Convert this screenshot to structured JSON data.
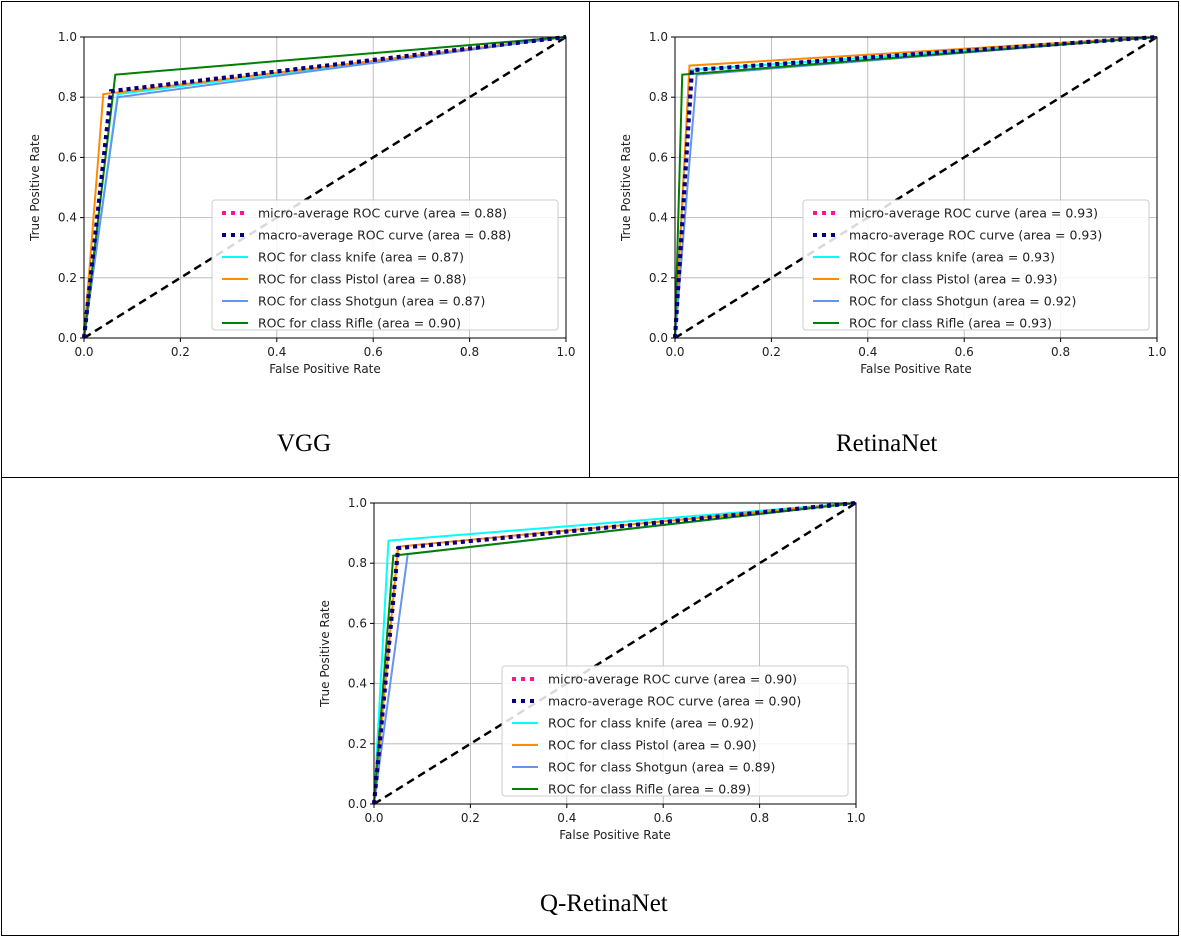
{
  "chart_data": [
    {
      "type": "line",
      "caption": "VGG",
      "xlabel": "False Positive Rate",
      "ylabel": "True Positive Rate",
      "xlim": [
        0,
        1
      ],
      "ylim": [
        0,
        1
      ],
      "xticks": [
        "0.0",
        "0.2",
        "0.4",
        "0.6",
        "0.8",
        "1.0"
      ],
      "yticks": [
        "0.0",
        "0.2",
        "0.4",
        "0.6",
        "0.8",
        "1.0"
      ],
      "grid": true,
      "legend_position": "lower-right",
      "series": [
        {
          "name": "micro-average ROC curve (area = 0.88)",
          "color": "#ff1493",
          "style": "dotted",
          "x": [
            0,
            0.056,
            1
          ],
          "y": [
            0,
            0.82,
            1
          ]
        },
        {
          "name": "macro-average ROC curve (area = 0.88)",
          "color": "#000080",
          "style": "dotted",
          "x": [
            0,
            0.056,
            1
          ],
          "y": [
            0,
            0.82,
            1
          ]
        },
        {
          "name": "ROC for class knife (area = 0.87)",
          "color": "#00ffff",
          "style": "solid",
          "x": [
            0,
            0.07,
            1
          ],
          "y": [
            0,
            0.81,
            1
          ]
        },
        {
          "name": "ROC for class Pistol (area = 0.88)",
          "color": "#ff8c00",
          "style": "solid",
          "x": [
            0,
            0.04,
            1
          ],
          "y": [
            0,
            0.81,
            1
          ]
        },
        {
          "name": "ROC for class Shotgun (area = 0.87)",
          "color": "#6495ed",
          "style": "solid",
          "x": [
            0,
            0.07,
            1
          ],
          "y": [
            0,
            0.8,
            1
          ]
        },
        {
          "name": "ROC for class Rifle (area = 0.90)",
          "color": "#008000",
          "style": "solid",
          "x": [
            0,
            0.065,
            1
          ],
          "y": [
            0,
            0.875,
            1
          ]
        }
      ],
      "reference_line": {
        "x": [
          0,
          1
        ],
        "y": [
          0,
          1
        ],
        "color": "#000000",
        "style": "dashed"
      }
    },
    {
      "type": "line",
      "caption": "RetinaNet",
      "xlabel": "False Positive Rate",
      "ylabel": "True Positive Rate",
      "xlim": [
        0,
        1
      ],
      "ylim": [
        0,
        1
      ],
      "xticks": [
        "0.0",
        "0.2",
        "0.4",
        "0.6",
        "0.8",
        "1.0"
      ],
      "yticks": [
        "0.0",
        "0.2",
        "0.4",
        "0.6",
        "0.8",
        "1.0"
      ],
      "grid": true,
      "legend_position": "lower-right",
      "series": [
        {
          "name": "micro-average ROC curve (area = 0.93)",
          "color": "#ff1493",
          "style": "dotted",
          "x": [
            0,
            0.035,
            1
          ],
          "y": [
            0,
            0.89,
            1
          ]
        },
        {
          "name": "macro-average ROC curve (area = 0.93)",
          "color": "#000080",
          "style": "dotted",
          "x": [
            0,
            0.035,
            1
          ],
          "y": [
            0,
            0.89,
            1
          ]
        },
        {
          "name": "ROC for class knife (area = 0.93)",
          "color": "#00ffff",
          "style": "solid",
          "x": [
            0,
            0.03,
            1
          ],
          "y": [
            0,
            0.89,
            1
          ]
        },
        {
          "name": "ROC for class Pistol (area = 0.93)",
          "color": "#ff8c00",
          "style": "solid",
          "x": [
            0,
            0.03,
            1
          ],
          "y": [
            0,
            0.905,
            1
          ]
        },
        {
          "name": "ROC for class Shotgun (area = 0.92)",
          "color": "#6495ed",
          "style": "solid",
          "x": [
            0,
            0.045,
            1
          ],
          "y": [
            0,
            0.875,
            1
          ]
        },
        {
          "name": "ROC for class Rifle (area = 0.93)",
          "color": "#008000",
          "style": "solid",
          "x": [
            0,
            0.015,
            1
          ],
          "y": [
            0,
            0.875,
            1
          ]
        }
      ],
      "reference_line": {
        "x": [
          0,
          1
        ],
        "y": [
          0,
          1
        ],
        "color": "#000000",
        "style": "dashed"
      }
    },
    {
      "type": "line",
      "caption": "Q-RetinaNet",
      "xlabel": "False Positive Rate",
      "ylabel": "True Positive Rate",
      "xlim": [
        0,
        1
      ],
      "ylim": [
        0,
        1
      ],
      "xticks": [
        "0.0",
        "0.2",
        "0.4",
        "0.6",
        "0.8",
        "1.0"
      ],
      "yticks": [
        "0.0",
        "0.2",
        "0.4",
        "0.6",
        "0.8",
        "1.0"
      ],
      "grid": true,
      "legend_position": "lower-right",
      "series": [
        {
          "name": "micro-average ROC curve (area = 0.90)",
          "color": "#ff1493",
          "style": "dotted",
          "x": [
            0,
            0.05,
            1
          ],
          "y": [
            0,
            0.85,
            1
          ]
        },
        {
          "name": "macro-average ROC curve (area = 0.90)",
          "color": "#000080",
          "style": "dotted",
          "x": [
            0,
            0.05,
            1
          ],
          "y": [
            0,
            0.85,
            1
          ]
        },
        {
          "name": "ROC for class knife (area = 0.92)",
          "color": "#00ffff",
          "style": "solid",
          "x": [
            0,
            0.03,
            1
          ],
          "y": [
            0,
            0.875,
            1
          ]
        },
        {
          "name": "ROC for class Pistol (area = 0.90)",
          "color": "#ff8c00",
          "style": "solid",
          "x": [
            0,
            0.05,
            1
          ],
          "y": [
            0,
            0.855,
            1
          ]
        },
        {
          "name": "ROC for class Shotgun (area = 0.89)",
          "color": "#6495ed",
          "style": "solid",
          "x": [
            0,
            0.07,
            1
          ],
          "y": [
            0,
            0.83,
            1
          ]
        },
        {
          "name": "ROC for class Rifle (area = 0.89)",
          "color": "#008000",
          "style": "solid",
          "x": [
            0,
            0.04,
            1
          ],
          "y": [
            0,
            0.825,
            1
          ]
        }
      ],
      "reference_line": {
        "x": [
          0,
          1
        ],
        "y": [
          0,
          1
        ],
        "color": "#000000",
        "style": "dashed"
      }
    }
  ]
}
